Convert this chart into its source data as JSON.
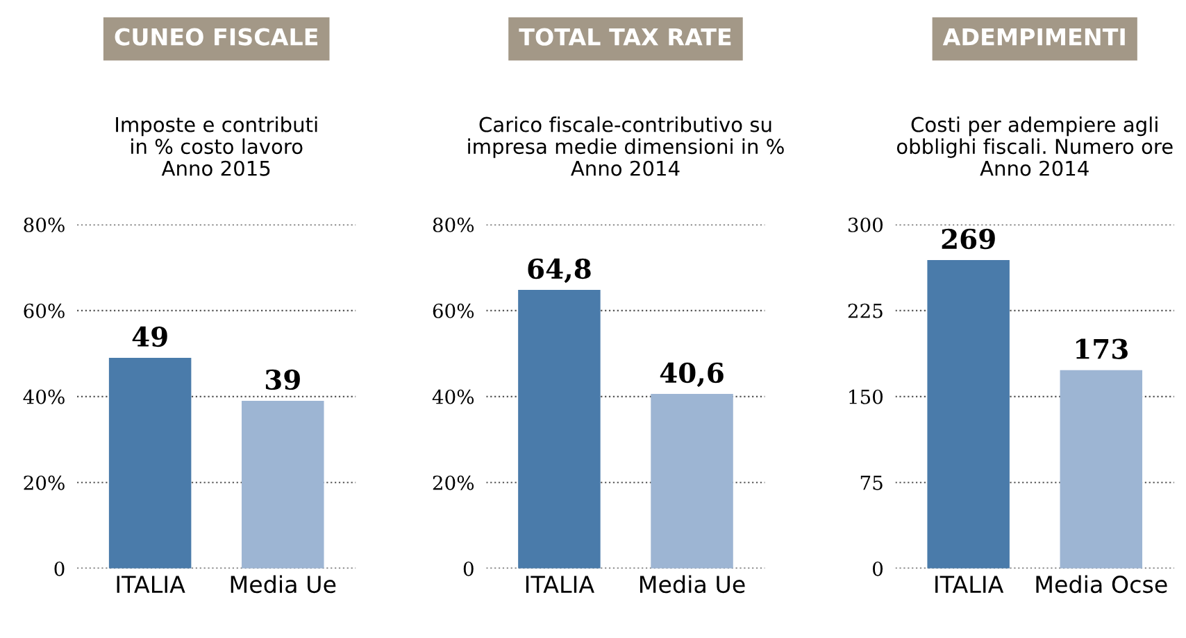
{
  "chart_data": [
    {
      "type": "bar",
      "title": "CUNEO FISCALE",
      "subtitle": "Imposte e contributi\nin % costo lavoro\nAnno 2015",
      "categories": [
        "ITALIA",
        "Media Ue"
      ],
      "values": [
        49,
        39
      ],
      "colors": [
        "#4a7baa",
        "#9db5d3"
      ],
      "value_labels": [
        "49",
        "39"
      ],
      "ylim": [
        0,
        80
      ],
      "yticks": [
        {
          "value": 0,
          "label": "0"
        },
        {
          "value": 20,
          "label": "20%"
        },
        {
          "value": 40,
          "label": "40%"
        },
        {
          "value": 60,
          "label": "60%"
        },
        {
          "value": 80,
          "label": "80%"
        }
      ],
      "grid": "y"
    },
    {
      "type": "bar",
      "title": "TOTAL TAX RATE",
      "subtitle": "Carico fiscale-contributivo su\nimpresa medie dimensioni in %\nAnno 2014",
      "categories": [
        "ITALIA",
        "Media Ue"
      ],
      "values": [
        64.8,
        40.6
      ],
      "colors": [
        "#4a7baa",
        "#9db5d3"
      ],
      "value_labels": [
        "64,8",
        "40,6"
      ],
      "ylim": [
        0,
        80
      ],
      "yticks": [
        {
          "value": 0,
          "label": "0"
        },
        {
          "value": 20,
          "label": "20%"
        },
        {
          "value": 40,
          "label": "40%"
        },
        {
          "value": 60,
          "label": "60%"
        },
        {
          "value": 80,
          "label": "80%"
        }
      ],
      "grid": "y"
    },
    {
      "type": "bar",
      "title": "ADEMPIMENTI",
      "subtitle": "Costi per adempiere agli\nobblighi fiscali. Numero ore\nAnno 2014",
      "categories": [
        "ITALIA",
        "Media Ocse"
      ],
      "values": [
        269,
        173
      ],
      "colors": [
        "#4a7baa",
        "#9db5d3"
      ],
      "value_labels": [
        "269",
        "173"
      ],
      "ylim": [
        0,
        300
      ],
      "yticks": [
        0,
        75,
        150,
        225,
        300
      ],
      "grid": "y"
    }
  ]
}
